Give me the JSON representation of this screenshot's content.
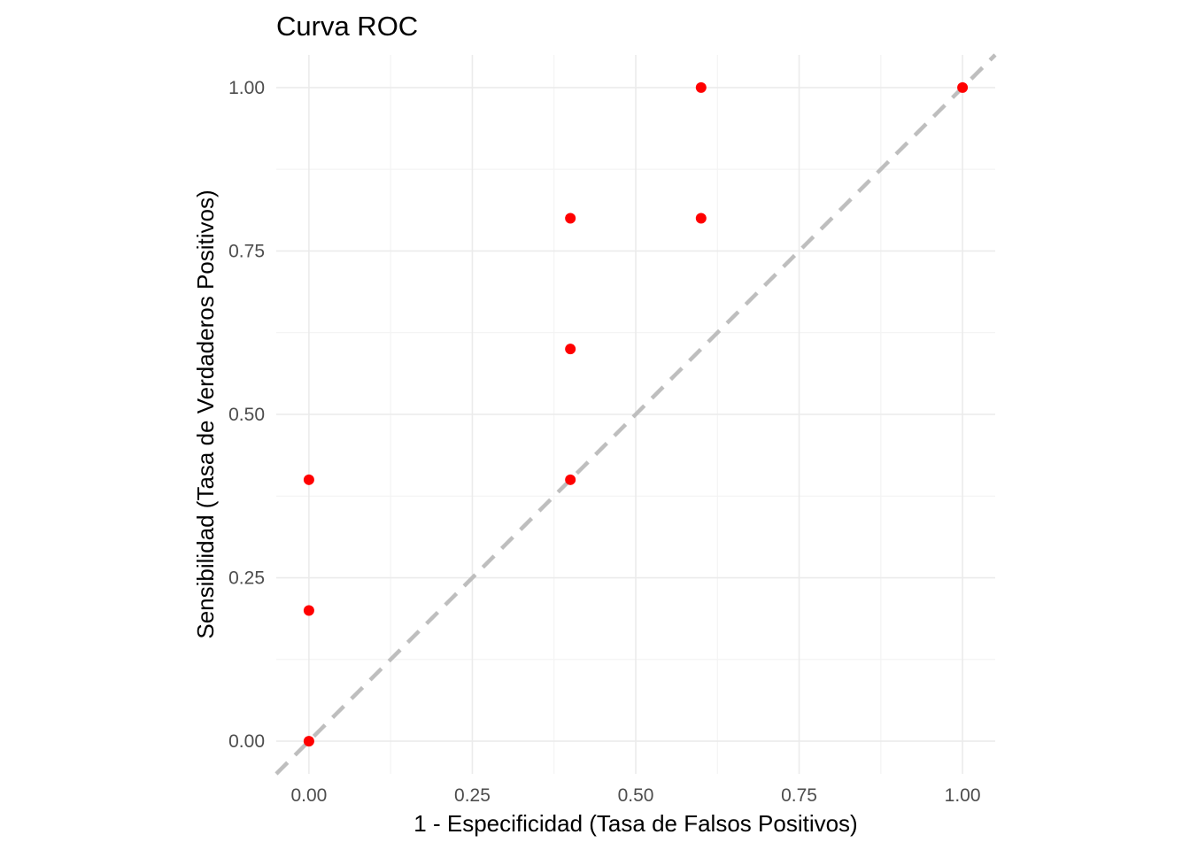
{
  "chart_data": {
    "type": "scatter",
    "title": "Curva ROC",
    "xlabel": "1 - Especificidad (Tasa de Falsos Positivos)",
    "ylabel": "Sensibilidad (Tasa de Verdaderos Positivos)",
    "xlim": [
      -0.05,
      1.05
    ],
    "ylim": [
      -0.05,
      1.05
    ],
    "x_ticks": [
      0,
      0.25,
      0.5,
      0.75,
      1
    ],
    "x_tick_labels": [
      "0.00",
      "0.25",
      "0.50",
      "0.75",
      "1.00"
    ],
    "y_ticks": [
      0,
      0.25,
      0.5,
      0.75,
      1
    ],
    "y_tick_labels": [
      "0.00",
      "0.25",
      "0.50",
      "0.75",
      "1.00"
    ],
    "grid": true,
    "points": [
      {
        "x": 0.0,
        "y": 0.0
      },
      {
        "x": 0.0,
        "y": 0.2
      },
      {
        "x": 0.0,
        "y": 0.4
      },
      {
        "x": 0.4,
        "y": 0.4
      },
      {
        "x": 0.4,
        "y": 0.6
      },
      {
        "x": 0.4,
        "y": 0.8
      },
      {
        "x": 0.6,
        "y": 0.8
      },
      {
        "x": 0.6,
        "y": 1.0
      },
      {
        "x": 1.0,
        "y": 1.0
      }
    ],
    "reference_line": {
      "type": "diagonal",
      "style": "dashed",
      "color": "#bebebe"
    },
    "point_color": "#ff0000"
  }
}
